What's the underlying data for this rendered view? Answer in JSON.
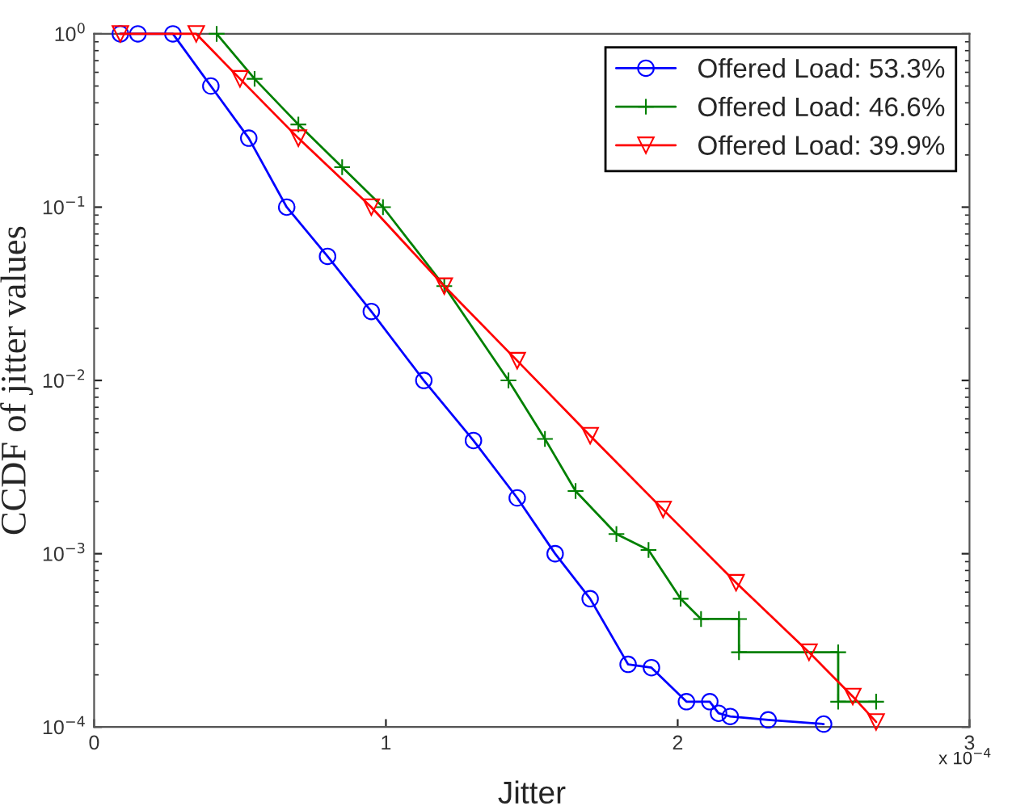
{
  "chart_data": {
    "type": "line",
    "xlabel": "Jitter",
    "ylabel": "CCDF of jitter values",
    "log": "y",
    "grid": false,
    "legend": "top right",
    "xlim": [
      0,
      3
    ],
    "xticks": [
      0,
      1,
      2,
      3
    ],
    "ylim": [
      0.0001,
      1
    ],
    "yticks": [
      {
        "value": 0.0001,
        "label": "10$^{−4}$"
      },
      {
        "value": 0.001,
        "label": "10$^{−3}$"
      },
      {
        "value": 0.01,
        "label": "10$^{−2}$"
      },
      {
        "value": 0.1,
        "label": "10$^{−1}$"
      },
      {
        "value": 1,
        "label": "10$^{0}$"
      }
    ],
    "annotations": [
      "x 10$^{−4}$"
    ],
    "series": [
      {
        "name": "Offered Load: 53.3%",
        "color": "#0000ff",
        "marker": "circle",
        "x": [
          0.09,
          0.15,
          0.27,
          0.4,
          0.53,
          0.66,
          0.8,
          0.95,
          1.13,
          1.3,
          1.45,
          1.58,
          1.7,
          1.83,
          1.91,
          2.03,
          2.11,
          2.14,
          2.18,
          2.31,
          2.5
        ],
        "values": [
          1,
          1,
          1,
          0.5,
          0.25,
          0.1,
          0.052,
          0.025,
          0.01,
          0.0045,
          0.0021,
          0.001,
          0.00055,
          0.00023,
          0.00022,
          0.00014,
          0.00014,
          0.00012,
          0.000115,
          0.00011,
          0.000104
        ]
      },
      {
        "name": "Offered Load: 46.6%",
        "color": "#008000",
        "marker": "cross",
        "x": [
          0.42,
          0.55,
          0.7,
          0.85,
          0.99,
          1.2,
          1.42,
          1.545,
          1.65,
          1.79,
          1.9,
          2.01,
          2.08,
          2.21,
          2.21,
          2.55,
          2.55,
          2.68
        ],
        "values": [
          1,
          0.55,
          0.3,
          0.17,
          0.1,
          0.035,
          0.01,
          0.0046,
          0.0023,
          0.0013,
          0.00105,
          0.00055,
          0.00042,
          0.00042,
          0.00027,
          0.00027,
          0.00014,
          0.00014
        ]
      },
      {
        "name": "Offered Load: 39.9%",
        "color": "#ff0000",
        "marker": "triangle",
        "x": [
          0.09,
          0.35,
          0.5,
          0.7,
          0.95,
          1.2,
          1.45,
          1.7,
          1.95,
          2.2,
          2.45,
          2.6,
          2.68
        ],
        "values": [
          1,
          1,
          0.55,
          0.25,
          0.1,
          0.035,
          0.013,
          0.0048,
          0.0018,
          0.00068,
          0.00027,
          0.00015,
          0.000107
        ]
      }
    ]
  }
}
